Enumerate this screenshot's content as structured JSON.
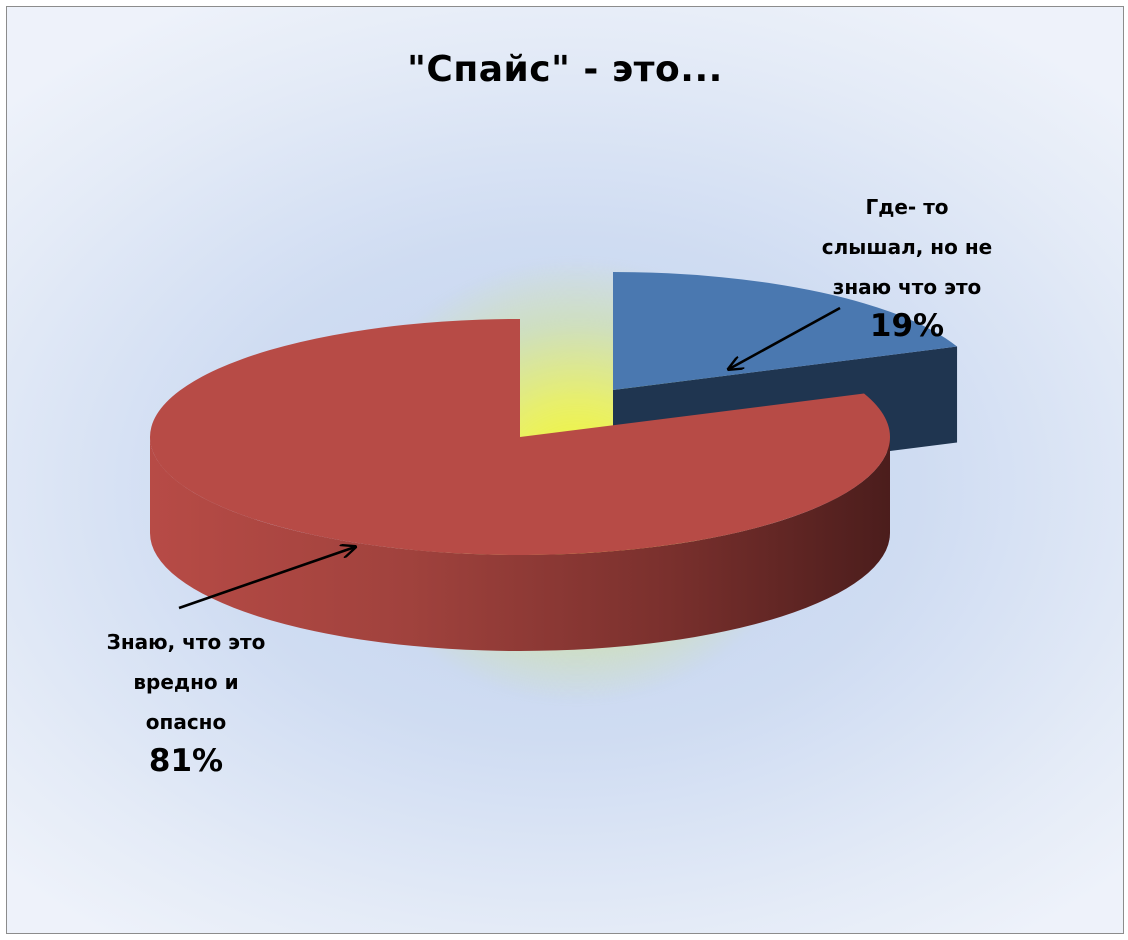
{
  "chart_data": {
    "type": "pie",
    "style": "3d-exploded",
    "title": "\"Спайс\" - это...",
    "categories": [
      "Где- то слышал, но не знаю что это",
      "Знаю, что это вредно и опасно"
    ],
    "values": [
      19,
      81
    ],
    "value_labels": [
      "19%",
      "81%"
    ],
    "slice_colors": [
      "#4a78b0",
      "#b74b46"
    ],
    "legend": "none",
    "data_labels": [
      {
        "name": "Где- то\nслышал, но не\nзнаю что это",
        "pct": "19%"
      },
      {
        "name": "Знаю, что это\nвредно и\nопасно",
        "pct": "81%"
      }
    ]
  }
}
